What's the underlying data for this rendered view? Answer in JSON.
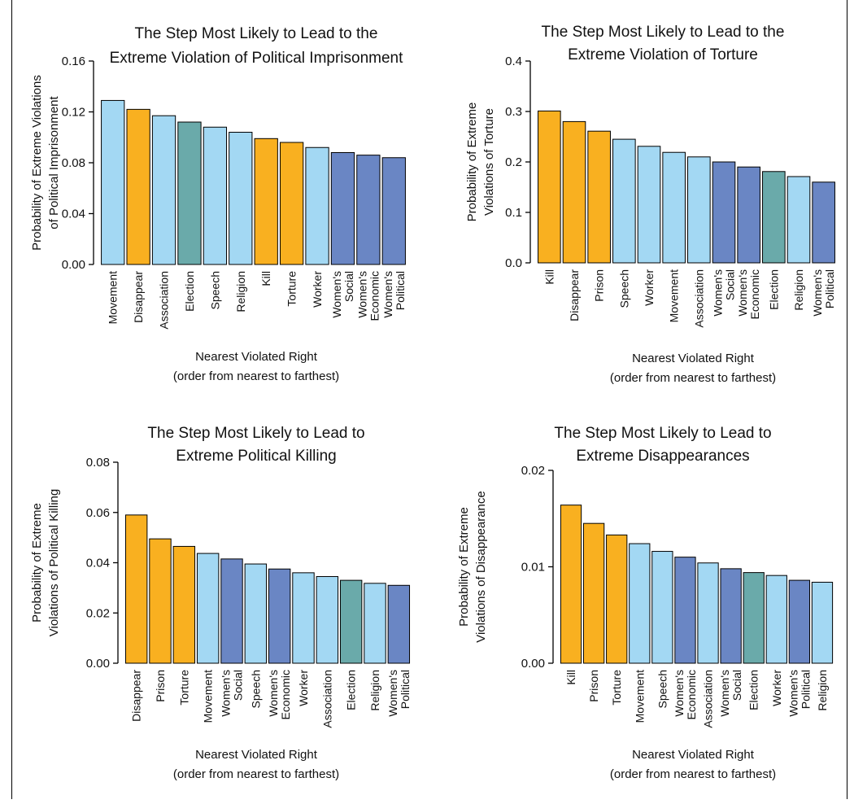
{
  "colors": {
    "light_blue": "#a3d8f3",
    "orange": "#f9b020",
    "teal": "#6aaaaa",
    "dark_blue": "#6a86c4"
  },
  "chart_data": [
    {
      "type": "bar",
      "title": [
        "The Step Most Likely to Lead to the",
        "Extreme Violation of Political Imprisonment"
      ],
      "ylabel": [
        "Probability of Extreme Violations",
        "of  Political Imprisonment"
      ],
      "xlabel": [
        "Nearest Violated Right",
        "(order from nearest to farthest)"
      ],
      "ylim": [
        0,
        0.16
      ],
      "yticks": [
        "0.00",
        "0.04",
        "0.08",
        "0.12",
        "0.16"
      ],
      "categories": [
        [
          "Movement"
        ],
        [
          "Disappear"
        ],
        [
          "Association"
        ],
        [
          "Election"
        ],
        [
          "Speech"
        ],
        [
          "Religion"
        ],
        [
          "Kill"
        ],
        [
          "Torture"
        ],
        [
          "Worker"
        ],
        [
          "Women's",
          "Social"
        ],
        [
          "Women's",
          "Economic"
        ],
        [
          "Women's",
          "Political"
        ]
      ],
      "values": [
        0.129,
        0.122,
        0.117,
        0.112,
        0.108,
        0.104,
        0.099,
        0.096,
        0.092,
        0.088,
        0.086,
        0.084
      ],
      "colors": [
        "light_blue",
        "orange",
        "light_blue",
        "teal",
        "light_blue",
        "light_blue",
        "orange",
        "orange",
        "light_blue",
        "dark_blue",
        "dark_blue",
        "dark_blue"
      ]
    },
    {
      "type": "bar",
      "title": [
        "The Step Most Likely to Lead to the",
        "Extreme Violation of Torture"
      ],
      "ylabel": [
        "Probability of Extreme",
        "Violations of Torture"
      ],
      "xlabel": [
        "Nearest Violated Right",
        "(order from nearest to farthest)"
      ],
      "ylim": [
        0,
        0.4
      ],
      "yticks": [
        "0.0",
        "0.1",
        "0.2",
        "0.3",
        "0.4"
      ],
      "categories": [
        [
          "Kill"
        ],
        [
          "Disappear"
        ],
        [
          "Prison"
        ],
        [
          "Speech"
        ],
        [
          "Worker"
        ],
        [
          "Movement"
        ],
        [
          "Association"
        ],
        [
          "Women's",
          "Social"
        ],
        [
          "Women's",
          "Economic"
        ],
        [
          "Election"
        ],
        [
          "Religion"
        ],
        [
          "Women's",
          "Political"
        ]
      ],
      "values": [
        0.301,
        0.28,
        0.261,
        0.245,
        0.231,
        0.219,
        0.21,
        0.2,
        0.19,
        0.181,
        0.171,
        0.16
      ],
      "colors": [
        "orange",
        "orange",
        "orange",
        "light_blue",
        "light_blue",
        "light_blue",
        "light_blue",
        "dark_blue",
        "dark_blue",
        "teal",
        "light_blue",
        "dark_blue"
      ]
    },
    {
      "type": "bar",
      "title": [
        "The Step Most Likely to Lead to",
        "Extreme Political Killing"
      ],
      "ylabel": [
        "Probability of Extreme",
        "Violations of Political Killing"
      ],
      "xlabel": [
        "Nearest Violated Right",
        "(order from nearest to farthest)"
      ],
      "ylim": [
        0,
        0.08
      ],
      "yticks": [
        "0.00",
        "0.02",
        "0.04",
        "0.06",
        "0.08"
      ],
      "categories": [
        [
          "Disappear"
        ],
        [
          "Prison"
        ],
        [
          "Torture"
        ],
        [
          "Movement"
        ],
        [
          "Women's",
          "Social"
        ],
        [
          "Speech"
        ],
        [
          "Women's",
          "Economic"
        ],
        [
          "Worker"
        ],
        [
          "Association"
        ],
        [
          "Election"
        ],
        [
          "Religion"
        ],
        [
          "Women's",
          "Political"
        ]
      ],
      "values": [
        0.059,
        0.0495,
        0.0465,
        0.0437,
        0.0415,
        0.0395,
        0.0375,
        0.036,
        0.0345,
        0.033,
        0.0318,
        0.031
      ],
      "colors": [
        "orange",
        "orange",
        "orange",
        "light_blue",
        "dark_blue",
        "light_blue",
        "dark_blue",
        "light_blue",
        "light_blue",
        "teal",
        "light_blue",
        "dark_blue"
      ]
    },
    {
      "type": "bar",
      "title": [
        "The Step Most Likely to Lead to",
        "Extreme Disappearances"
      ],
      "ylabel": [
        "Probability of Extreme",
        "Violations of Disappearance"
      ],
      "xlabel": [
        "Nearest Violated Right",
        "(order from nearest to farthest)"
      ],
      "ylim": [
        0,
        0.02
      ],
      "yticks": [
        "0.00",
        "0.01",
        "0.02"
      ],
      "categories": [
        [
          "Kill"
        ],
        [
          "Prison"
        ],
        [
          "Torture"
        ],
        [
          "Movement"
        ],
        [
          "Speech"
        ],
        [
          "Women's",
          "Economic"
        ],
        [
          "Association"
        ],
        [
          "Women's",
          "Social"
        ],
        [
          "Election"
        ],
        [
          "Worker"
        ],
        [
          "Women's",
          "Political"
        ],
        [
          "Religion"
        ]
      ],
      "values": [
        0.0164,
        0.0145,
        0.0133,
        0.0124,
        0.0116,
        0.011,
        0.0104,
        0.0098,
        0.0094,
        0.0091,
        0.0086,
        0.0084
      ],
      "colors": [
        "orange",
        "orange",
        "orange",
        "light_blue",
        "light_blue",
        "dark_blue",
        "light_blue",
        "dark_blue",
        "teal",
        "light_blue",
        "dark_blue",
        "light_blue"
      ]
    }
  ]
}
